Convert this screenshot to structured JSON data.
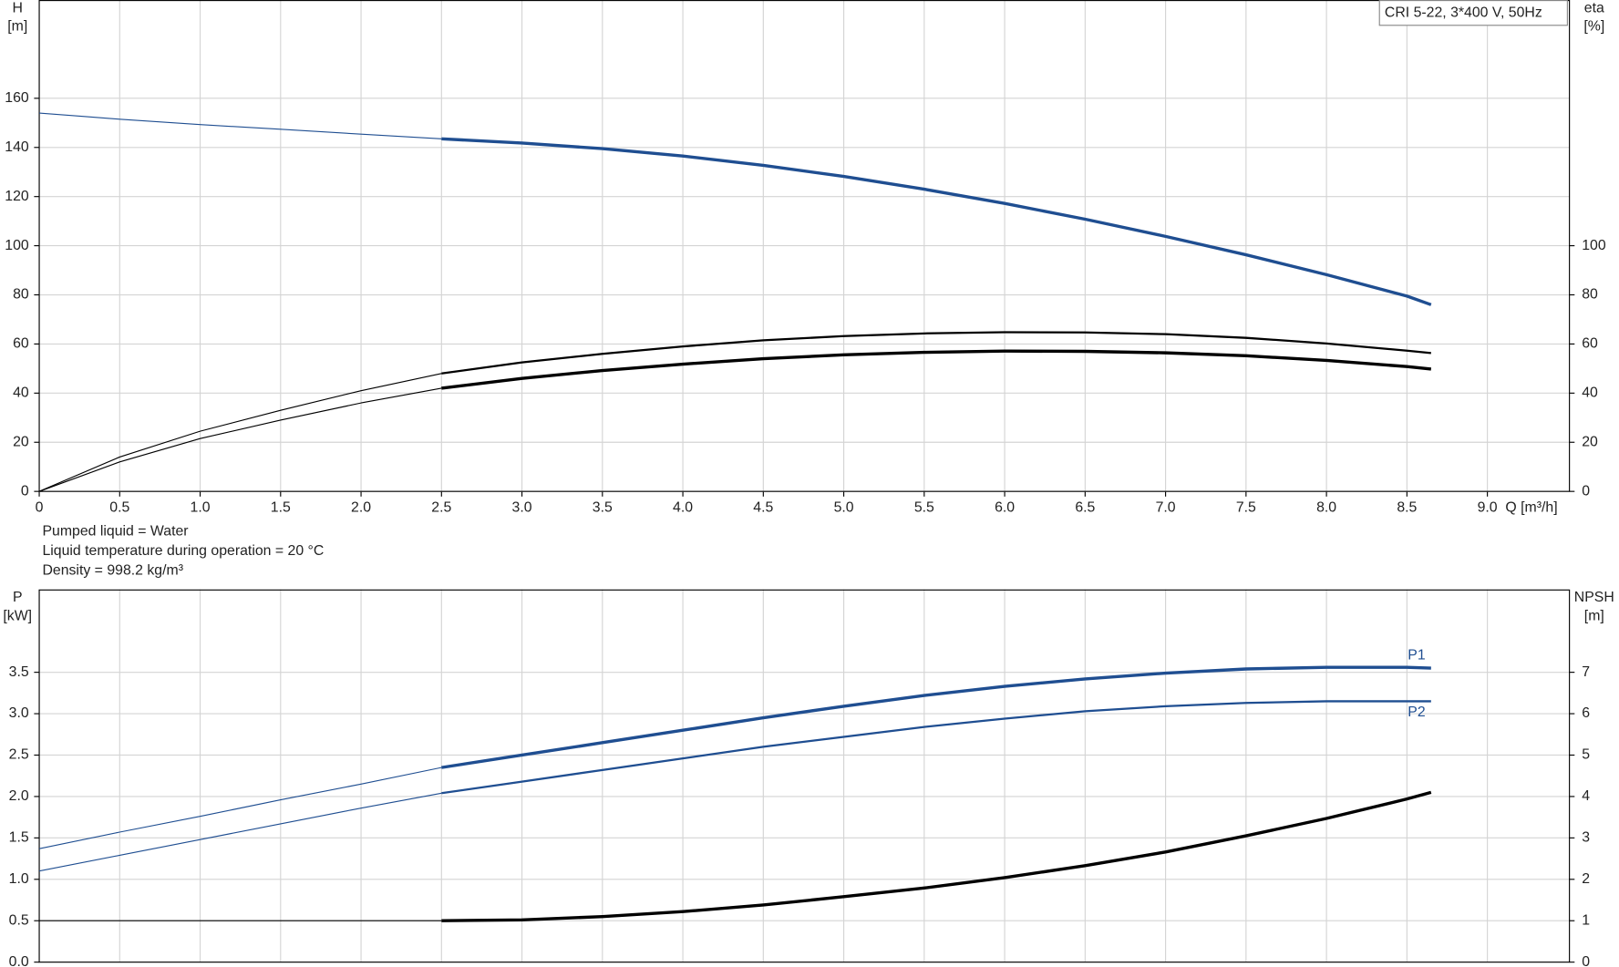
{
  "chart_data": [
    {
      "type": "line",
      "annotation": "CRI 5-22, 3*400 V, 50Hz",
      "ylabel": [
        "H",
        "[m]"
      ],
      "y2label": [
        "eta",
        "[%]"
      ],
      "xlabel": "Q [m³/h]",
      "notes": [
        "Pumped liquid = Water",
        "Liquid temperature during operation = 20 °C",
        "Density = 998.2 kg/m³"
      ],
      "grid": true,
      "show_xtick_labels": true,
      "x": [
        0,
        0.5,
        1,
        1.5,
        2,
        2.5,
        3,
        3.5,
        4,
        4.5,
        5,
        5.5,
        6,
        6.5,
        7,
        7.5,
        8,
        8.5,
        8.65
      ],
      "xlim": [
        0,
        9.51
      ],
      "xticks": [
        0,
        0.5,
        {
          "value": 1,
          "label": "1.0"
        },
        1.5,
        {
          "value": 2,
          "label": "2.0"
        },
        2.5,
        {
          "value": 3,
          "label": "3.0"
        },
        3.5,
        {
          "value": 4,
          "label": "4.0"
        },
        4.5,
        {
          "value": 5,
          "label": "5.0"
        },
        5.5,
        {
          "value": 6,
          "label": "6.0"
        },
        6.5,
        {
          "value": 7,
          "label": "7.0"
        },
        7.5,
        {
          "value": 8,
          "label": "8.0"
        },
        8.5,
        {
          "value": 9,
          "label": "9.0"
        }
      ],
      "ylim": [
        0,
        200
      ],
      "yticks": [
        0,
        20,
        40,
        60,
        80,
        100,
        120,
        140,
        160
      ],
      "y2lim": [
        0,
        200
      ],
      "y2ticks": [
        0,
        20,
        40,
        60,
        80,
        100
      ],
      "series": [
        {
          "color": "#1f4e91",
          "width": 1,
          "values": [
            154,
            151.5,
            149.3,
            147.4,
            145.4,
            143.5,
            null,
            null,
            null,
            null,
            null,
            null,
            null,
            null,
            null,
            null,
            null,
            null,
            null
          ]
        },
        {
          "color": "#1f4e91",
          "width": 3,
          "values": [
            null,
            null,
            null,
            null,
            null,
            143.5,
            141.8,
            139.5,
            136.5,
            132.7,
            128.2,
            123,
            117.2,
            110.8,
            103.8,
            96.3,
            88.2,
            79.5,
            76
          ]
        },
        {
          "color": "#000000",
          "width": 1,
          "axis": "y2",
          "values": [
            0,
            14,
            24.5,
            33,
            41,
            48,
            null,
            null,
            null,
            null,
            null,
            null,
            null,
            null,
            null,
            null,
            null,
            null,
            null
          ]
        },
        {
          "color": "#000000",
          "width": 2,
          "axis": "y2",
          "values": [
            null,
            null,
            null,
            null,
            null,
            48,
            52.5,
            56,
            59,
            61.5,
            63.2,
            64.3,
            64.8,
            64.7,
            64,
            62.5,
            60.2,
            57.3,
            56.3
          ]
        },
        {
          "color": "#000000",
          "width": 1,
          "axis": "y2",
          "values": [
            0,
            12,
            21.5,
            29,
            36,
            42,
            null,
            null,
            null,
            null,
            null,
            null,
            null,
            null,
            null,
            null,
            null,
            null,
            null
          ]
        },
        {
          "color": "#000000",
          "width": 3,
          "axis": "y2",
          "values": [
            null,
            null,
            null,
            null,
            null,
            42,
            46,
            49.2,
            51.8,
            54,
            55.6,
            56.6,
            57.1,
            57,
            56.4,
            55.2,
            53.3,
            50.8,
            49.8
          ]
        }
      ]
    },
    {
      "type": "line",
      "ylabel": [
        "P",
        "[kW]"
      ],
      "y2label": [
        "NPSH",
        "[m]"
      ],
      "grid": true,
      "show_xtick_labels": false,
      "x": [
        0,
        0.5,
        1,
        1.5,
        2,
        2.5,
        3,
        3.5,
        4,
        4.5,
        5,
        5.5,
        6,
        6.5,
        7,
        7.5,
        8,
        8.5,
        8.65
      ],
      "xlim": [
        0,
        9.51
      ],
      "xticks": [
        0,
        0.5,
        1,
        1.5,
        2,
        2.5,
        3,
        3.5,
        4,
        4.5,
        5,
        5.5,
        6,
        6.5,
        7,
        7.5,
        8,
        8.5,
        9
      ],
      "ylim": [
        0,
        4.5
      ],
      "yticks": [
        {
          "value": 0,
          "label": "0.0"
        },
        0.5,
        {
          "value": 1,
          "label": "1.0"
        },
        1.5,
        {
          "value": 2,
          "label": "2.0"
        },
        2.5,
        {
          "value": 3,
          "label": "3.0"
        },
        3.5
      ],
      "y2lim": [
        0,
        9
      ],
      "y2ticks": [
        0,
        1,
        2,
        3,
        4,
        5,
        6,
        7
      ],
      "series": [
        {
          "color": "#1f4e91",
          "width": 1,
          "values": [
            1.37,
            1.57,
            1.76,
            1.96,
            2.15,
            2.35,
            null,
            null,
            null,
            null,
            null,
            null,
            null,
            null,
            null,
            null,
            null,
            null,
            null
          ]
        },
        {
          "name": "P1",
          "color": "#1f4e91",
          "width": 3,
          "values": [
            null,
            null,
            null,
            null,
            null,
            2.35,
            2.5,
            2.65,
            2.8,
            2.95,
            3.09,
            3.22,
            3.33,
            3.42,
            3.49,
            3.54,
            3.56,
            3.56,
            3.55
          ]
        },
        {
          "color": "#1f4e91",
          "width": 1,
          "values": [
            1.1,
            1.29,
            1.48,
            1.67,
            1.86,
            2.04,
            null,
            null,
            null,
            null,
            null,
            null,
            null,
            null,
            null,
            null,
            null,
            null,
            null
          ]
        },
        {
          "name": "P2",
          "color": "#1f4e91",
          "width": 2,
          "values": [
            null,
            null,
            null,
            null,
            null,
            2.04,
            2.18,
            2.32,
            2.46,
            2.6,
            2.72,
            2.84,
            2.94,
            3.03,
            3.09,
            3.13,
            3.15,
            3.15,
            3.15
          ]
        },
        {
          "color": "#000000",
          "width": 1,
          "axis": "y2",
          "values": [
            1,
            1,
            1,
            1,
            1,
            1,
            null,
            null,
            null,
            null,
            null,
            null,
            null,
            null,
            null,
            null,
            null,
            null,
            null
          ]
        },
        {
          "color": "#000000",
          "width": 3,
          "axis": "y2",
          "values": [
            null,
            null,
            null,
            null,
            null,
            1,
            1.02,
            1.1,
            1.22,
            1.38,
            1.58,
            1.79,
            2.04,
            2.33,
            2.66,
            3.05,
            3.47,
            3.94,
            4.1
          ]
        }
      ]
    }
  ]
}
